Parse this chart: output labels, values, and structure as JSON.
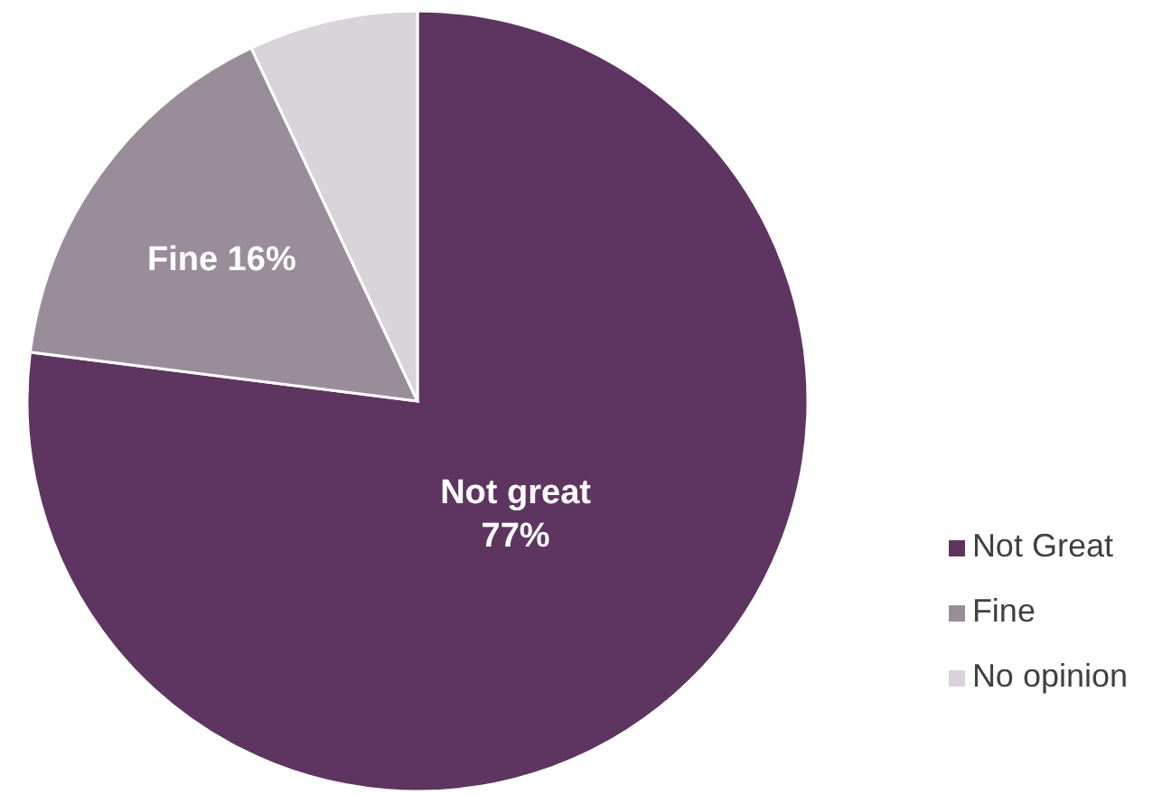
{
  "chart_data": {
    "type": "pie",
    "categories": [
      "Not Great",
      "Fine",
      "No opinion"
    ],
    "values": [
      77,
      16,
      7
    ],
    "colors": [
      "#5e3560",
      "#9a8d9a",
      "#d9d3da"
    ],
    "value_labels": [
      "Not great\n77%",
      "Fine 16%",
      null
    ],
    "legend": "bottom right"
  }
}
